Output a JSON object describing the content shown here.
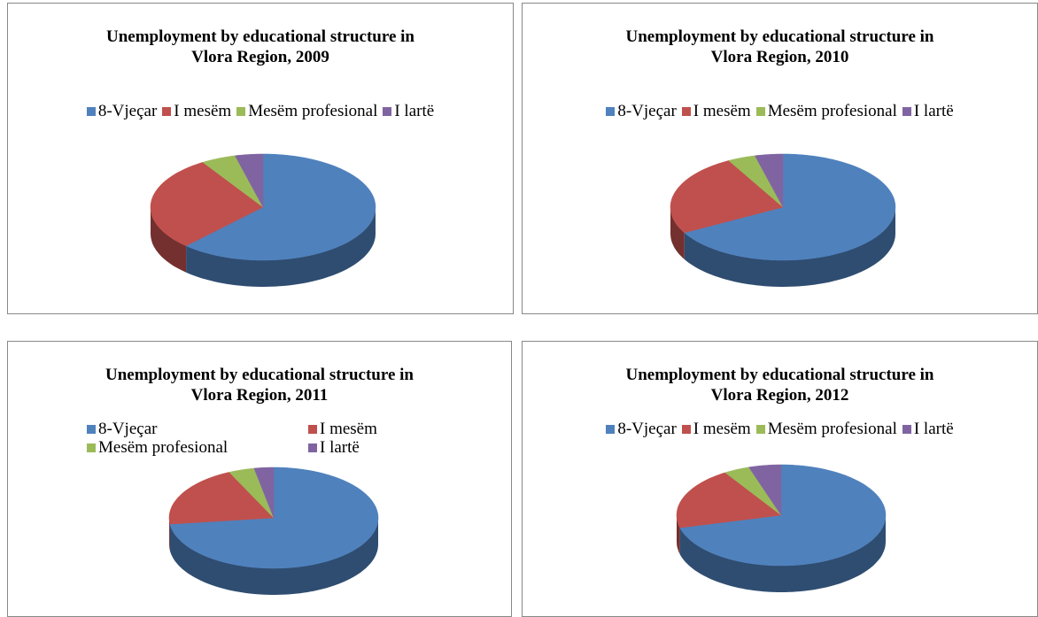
{
  "chart_data": [
    {
      "type": "pie",
      "title": "Unemployment by educational structure in\nVlora Region, 2009",
      "categories": [
        "8-Vjeçar",
        "I mesëm",
        "Mesëm profesional",
        "I lartë"
      ],
      "values": [
        62,
        29,
        5,
        4
      ],
      "colors": [
        "#4f81bd",
        "#c0504d",
        "#9bbb59",
        "#8064a2"
      ]
    },
    {
      "type": "pie",
      "title": "Unemployment by educational structure in\nVlora Region, 2010",
      "categories": [
        "8-Vjeçar",
        "I mesëm",
        "Mesëm profesional",
        "I lartë"
      ],
      "values": [
        67,
        25,
        4,
        4
      ],
      "colors": [
        "#4f81bd",
        "#c0504d",
        "#9bbb59",
        "#8064a2"
      ]
    },
    {
      "type": "pie",
      "title": "Unemployment by educational structure in\nVlora Region, 2011",
      "categories": [
        "8-Vjeçar",
        "I mesëm",
        "Mesëm profesional",
        "I lartë"
      ],
      "values": [
        73,
        20,
        4,
        3
      ],
      "colors": [
        "#4f81bd",
        "#c0504d",
        "#9bbb59",
        "#8064a2"
      ]
    },
    {
      "type": "pie",
      "title": "Unemployment by educational structure in\nVlora Region, 2012",
      "categories": [
        "8-Vjeçar",
        "I mesëm",
        "Mesëm profesional",
        "I lartë"
      ],
      "values": [
        71,
        20,
        4,
        5
      ],
      "colors": [
        "#4f81bd",
        "#c0504d",
        "#9bbb59",
        "#8064a2"
      ]
    }
  ]
}
